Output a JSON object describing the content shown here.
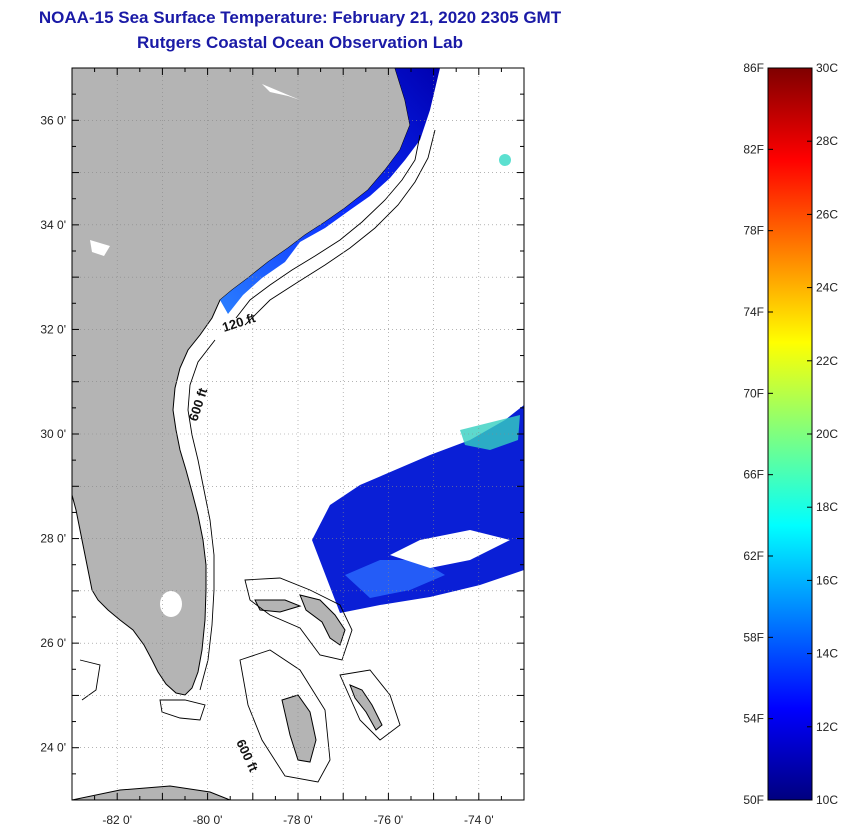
{
  "header": {
    "title": "NOAA-15 Sea Surface Temperature:  February 21, 2020 2305 GMT",
    "subtitle": "Rutgers Coastal Ocean Observation Lab"
  },
  "map": {
    "lon_range": [
      -83,
      -73
    ],
    "lat_range": [
      23,
      37
    ],
    "lon_ticks": [
      {
        "value": -82,
        "label": "-82 0'"
      },
      {
        "value": -80,
        "label": "-80 0'"
      },
      {
        "value": -78,
        "label": "-78 0'"
      },
      {
        "value": -76,
        "label": "-76 0'"
      },
      {
        "value": -74,
        "label": "-74 0'"
      }
    ],
    "lat_ticks": [
      {
        "value": 36,
        "label": "36 0'"
      },
      {
        "value": 34,
        "label": "34 0'"
      },
      {
        "value": 32,
        "label": "32 0'"
      },
      {
        "value": 30,
        "label": "30 0'"
      },
      {
        "value": 28,
        "label": "28 0'"
      },
      {
        "value": 26,
        "label": "26 0'"
      },
      {
        "value": 24,
        "label": "24 0'"
      }
    ],
    "contour_labels": [
      "120 ft",
      "600 ft",
      "600 ft"
    ],
    "colors": {
      "land": "#b4b4b4",
      "ocean": "#ffffff",
      "outline": "#000000"
    }
  },
  "colorbar": {
    "fahrenheit_labels": [
      "86F",
      "82F",
      "78F",
      "74F",
      "70F",
      "66F",
      "62F",
      "58F",
      "54F",
      "50F"
    ],
    "celsius_labels": [
      "30C",
      "28C",
      "26C",
      "24C",
      "22C",
      "20C",
      "18C",
      "16C",
      "14C",
      "12C",
      "10C"
    ],
    "range_c": [
      10,
      30
    ],
    "range_f": [
      50,
      86
    ],
    "gradient": [
      "#00007f",
      "#0000ff",
      "#007fff",
      "#00ffff",
      "#7fff7f",
      "#ffff00",
      "#ff7f00",
      "#ff0000",
      "#7f0000"
    ]
  }
}
